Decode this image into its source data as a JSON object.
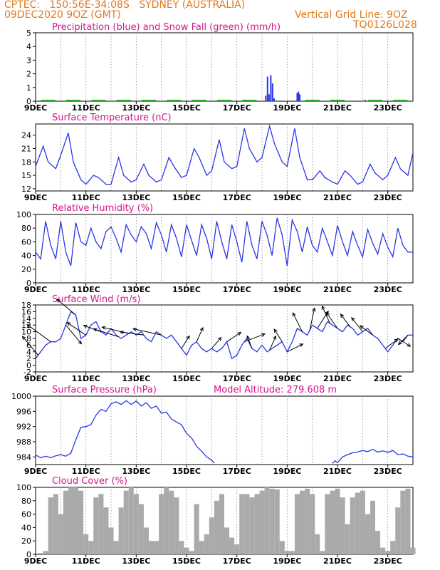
{
  "header": {
    "line1_left": "CPTEC:   150:56E-34:08S   SYDNEY (AUSTRALIA)",
    "line2_left": "09DEC2020 9OZ (GMT)",
    "line2_right": "Vertical Grid Line: 9OZ",
    "line3_right": "TQ0126L028"
  },
  "colors": {
    "header": "#e07a1e",
    "title": "#d4148c",
    "series": "#2a36e6",
    "snow": "#22a522",
    "cloud": "#aaaaaa",
    "grid": "#888888"
  },
  "x_ticks": [
    "9DEC",
    "11DEC",
    "13DEC",
    "15DEC",
    "17DEC",
    "19DEC",
    "21DEC",
    "23DEC"
  ],
  "chart_data": [
    {
      "type": "bar",
      "title": "Precipitation (blue) and Snow Fall (green) (mm/h)",
      "xlabel": "",
      "ylabel": "",
      "ylim": [
        0,
        5
      ],
      "y_ticks": [
        "0",
        "1",
        "2",
        "3",
        "4",
        "5"
      ],
      "series": [
        {
          "x": [
            18.15,
            18.22,
            18.28,
            18.35,
            18.42,
            18.48,
            19.4,
            19.45,
            19.5,
            22.1
          ],
          "values": [
            0.4,
            1.8,
            0.5,
            1.9,
            1.3,
            0.2,
            0.6,
            0.7,
            0.5,
            0.1
          ]
        },
        {
          "x": [
            9.5,
            10.5,
            11.5,
            12.5,
            13.5,
            14.5,
            15.5,
            16.5,
            17.5,
            20.0,
            21.0,
            22.5,
            23.5
          ],
          "values": [
            0.05,
            0.05,
            0.05,
            0.05,
            0.05,
            0.05,
            0.05,
            0.05,
            0.05,
            0.05,
            0.05,
            0.05,
            0.05
          ]
        }
      ]
    },
    {
      "type": "line",
      "title": "Surface Temperature (nC)",
      "ylim": [
        11.5,
        26.5
      ],
      "y_ticks": [
        "12",
        "15",
        "18",
        "21",
        "24"
      ],
      "x": [
        9.0,
        9.3,
        9.5,
        9.8,
        10.0,
        10.3,
        10.5,
        10.8,
        11.0,
        11.3,
        11.5,
        11.8,
        12.0,
        12.3,
        12.5,
        12.8,
        13.0,
        13.3,
        13.5,
        13.8,
        14.0,
        14.3,
        14.5,
        14.8,
        15.0,
        15.3,
        15.5,
        15.8,
        16.0,
        16.3,
        16.5,
        16.8,
        17.0,
        17.3,
        17.5,
        17.8,
        18.0,
        18.3,
        18.5,
        18.8,
        19.0,
        19.3,
        19.5,
        19.8,
        20.0,
        20.3,
        20.5,
        20.8,
        21.0,
        21.3,
        21.5,
        21.8,
        22.0,
        22.3,
        22.5,
        22.8,
        23.0,
        23.3,
        23.5,
        23.8,
        24.0
      ],
      "values": [
        17,
        21.5,
        18,
        16.5,
        19.5,
        24.5,
        18,
        14,
        13,
        15,
        14.5,
        13,
        13,
        19,
        15,
        13.5,
        14,
        17.5,
        15,
        13.5,
        14,
        19,
        17,
        14.5,
        15,
        21,
        19,
        15,
        16,
        23,
        18,
        16.5,
        17,
        25.5,
        21,
        18,
        19,
        26,
        22,
        18,
        17,
        25.5,
        19,
        14,
        14,
        16,
        14.5,
        13.5,
        13,
        16,
        15,
        13,
        13.5,
        17.5,
        15.5,
        14,
        15,
        19,
        16.5,
        15,
        20
      ]
    },
    {
      "type": "line",
      "title": "Relative Humidity (%)",
      "ylim": [
        0,
        100
      ],
      "y_ticks": [
        "0",
        "20",
        "40",
        "60",
        "80",
        "100"
      ],
      "x": [
        9.0,
        9.2,
        9.4,
        9.6,
        9.8,
        10.0,
        10.2,
        10.4,
        10.6,
        10.8,
        11.0,
        11.2,
        11.4,
        11.6,
        11.8,
        12.0,
        12.2,
        12.4,
        12.6,
        12.8,
        13.0,
        13.2,
        13.4,
        13.6,
        13.8,
        14.0,
        14.2,
        14.4,
        14.6,
        14.8,
        15.0,
        15.2,
        15.4,
        15.6,
        15.8,
        16.0,
        16.2,
        16.4,
        16.6,
        16.8,
        17.0,
        17.2,
        17.4,
        17.6,
        17.8,
        18.0,
        18.2,
        18.4,
        18.6,
        18.8,
        19.0,
        19.2,
        19.4,
        19.6,
        19.8,
        20.0,
        20.2,
        20.4,
        20.6,
        20.8,
        21.0,
        21.2,
        21.4,
        21.6,
        21.8,
        22.0,
        22.2,
        22.4,
        22.6,
        22.8,
        23.0,
        23.2,
        23.4,
        23.6,
        23.8,
        24.0
      ],
      "values": [
        45,
        35,
        90,
        55,
        35,
        90,
        45,
        25,
        88,
        60,
        55,
        80,
        60,
        50,
        75,
        82,
        65,
        45,
        85,
        70,
        60,
        82,
        72,
        50,
        88,
        70,
        45,
        85,
        65,
        38,
        85,
        62,
        40,
        85,
        65,
        35,
        90,
        60,
        35,
        85,
        60,
        30,
        90,
        55,
        35,
        90,
        70,
        40,
        95,
        70,
        25,
        92,
        75,
        45,
        82,
        55,
        45,
        80,
        60,
        40,
        84,
        60,
        40,
        75,
        55,
        38,
        78,
        58,
        42,
        72,
        52,
        38,
        80,
        55,
        45,
        45
      ]
    },
    {
      "type": "line",
      "title": "Surface Wind (m/s)",
      "ylim": [
        -2,
        18
      ],
      "y_ticks": [
        "-2",
        "0",
        "2",
        "4",
        "6",
        "8",
        "10",
        "12",
        "14",
        "16",
        "18"
      ],
      "x": [
        9.0,
        9.2,
        9.4,
        9.6,
        9.8,
        10.0,
        10.2,
        10.4,
        10.6,
        10.8,
        11.0,
        11.2,
        11.4,
        11.6,
        11.8,
        12.0,
        12.2,
        12.4,
        12.6,
        12.8,
        13.0,
        13.2,
        13.4,
        13.6,
        13.8,
        14.0,
        14.2,
        14.4,
        14.6,
        14.8,
        15.0,
        15.2,
        15.4,
        15.6,
        15.8,
        16.0,
        16.2,
        16.4,
        16.6,
        16.8,
        17.0,
        17.2,
        17.4,
        17.6,
        17.8,
        18.0,
        18.2,
        18.4,
        18.6,
        18.8,
        19.0,
        19.2,
        19.4,
        19.6,
        19.8,
        20.0,
        20.2,
        20.4,
        20.6,
        20.8,
        21.0,
        21.2,
        21.4,
        21.6,
        21.8,
        22.0,
        22.2,
        22.4,
        22.6,
        22.8,
        23.0,
        23.2,
        23.4,
        23.6,
        23.8,
        24.0
      ],
      "values": [
        2,
        4,
        6,
        7,
        7,
        8,
        12,
        16,
        15,
        8,
        9,
        12,
        13,
        10,
        9,
        11,
        9,
        8,
        9,
        10,
        9,
        10,
        8,
        7,
        10,
        9,
        8,
        9,
        7,
        5,
        3,
        6,
        7,
        5,
        4,
        5,
        4,
        5,
        7,
        2,
        3,
        6,
        8,
        5,
        4,
        6,
        4,
        5,
        6,
        7,
        4,
        7,
        11,
        10,
        9,
        12,
        11,
        10,
        13,
        12,
        11,
        10,
        12,
        11,
        9,
        10,
        11,
        9,
        8,
        6,
        4,
        6,
        8,
        7,
        9,
        9
      ],
      "arrows": [
        {
          "x": 9.1,
          "u": -1,
          "v": 1.2
        },
        {
          "x": 9.6,
          "u": -1.5,
          "v": 1.1
        },
        {
          "x": 10.2,
          "u": 1,
          "v": -1.2
        },
        {
          "x": 10.6,
          "u": -1.2,
          "v": 1
        },
        {
          "x": 11.0,
          "u": -1.2,
          "v": 0.8
        },
        {
          "x": 11.6,
          "u": -1.1,
          "v": 0.4
        },
        {
          "x": 12.3,
          "u": -1.6,
          "v": 0.5
        },
        {
          "x": 12.7,
          "u": -1.7,
          "v": 0.4
        },
        {
          "x": 13.3,
          "u": -1.5,
          "v": 0.2
        },
        {
          "x": 14.0,
          "u": -1.8,
          "v": 0.4
        },
        {
          "x": 14.8,
          "u": 0.5,
          "v": 0.8
        },
        {
          "x": 15.4,
          "u": 0.4,
          "v": 0.9
        },
        {
          "x": 16.0,
          "u": 0.6,
          "v": 0.7
        },
        {
          "x": 16.6,
          "u": 0.9,
          "v": 0.6
        },
        {
          "x": 17.3,
          "u": 1.3,
          "v": 0.5
        },
        {
          "x": 17.6,
          "u": -0.3,
          "v": 0.8
        },
        {
          "x": 18.3,
          "u": 0.4,
          "v": 0.9
        },
        {
          "x": 18.8,
          "u": -0.5,
          "v": 0.8
        },
        {
          "x": 19.0,
          "u": 1.0,
          "v": 0.5
        },
        {
          "x": 19.6,
          "u": -0.6,
          "v": 1.2
        },
        {
          "x": 19.9,
          "u": 0.3,
          "v": 1.4
        },
        {
          "x": 20.2,
          "u": 0.7,
          "v": 1.1
        },
        {
          "x": 20.7,
          "u": -0.5,
          "v": 1.1
        },
        {
          "x": 21.0,
          "u": -0.7,
          "v": 1.0
        },
        {
          "x": 21.5,
          "u": -0.6,
          "v": 0.8
        },
        {
          "x": 22.0,
          "u": -0.7,
          "v": 0.9
        },
        {
          "x": 22.4,
          "u": -0.8,
          "v": 0.6
        },
        {
          "x": 22.9,
          "u": 0.8,
          "v": 0.6
        },
        {
          "x": 23.4,
          "u": 0.8,
          "v": -0.5
        },
        {
          "x": 23.8,
          "u": -0.6,
          "v": -0.6
        }
      ]
    },
    {
      "type": "line",
      "title": "Surface Pressure (hPa)",
      "subtitle": "Model Altitude: 279.608  m",
      "ylim": [
        982,
        1000
      ],
      "y_ticks": [
        "984",
        "988",
        "992",
        "996",
        "1000"
      ],
      "x": [
        9.0,
        9.2,
        9.4,
        9.6,
        9.8,
        10.0,
        10.2,
        10.4,
        10.6,
        10.8,
        11.0,
        11.2,
        11.4,
        11.6,
        11.8,
        12.0,
        12.2,
        12.4,
        12.6,
        12.8,
        13.0,
        13.2,
        13.4,
        13.6,
        13.8,
        14.0,
        14.2,
        14.4,
        14.6,
        14.8,
        15.0,
        15.2,
        15.4,
        15.6,
        15.8,
        16.0,
        16.1
      ],
      "x2": [
        20.8,
        20.9,
        21.0,
        21.2,
        21.4,
        21.6,
        21.8,
        22.0,
        22.2,
        22.4,
        22.6,
        22.8,
        23.0,
        23.2,
        23.4,
        23.6,
        23.8,
        24.0
      ],
      "values": [
        984.5,
        983.8,
        984.2,
        983.8,
        984.3,
        984.6,
        984.2,
        985,
        988.5,
        991.8,
        992,
        992.5,
        995,
        996.5,
        996,
        998,
        998.5,
        997.8,
        998.8,
        997.8,
        998.7,
        997.4,
        998.3,
        996.8,
        997.4,
        995.5,
        995.8,
        994,
        993.2,
        992.5,
        990.2,
        989,
        986.8,
        985.5,
        984,
        983.2,
        982.4
      ],
      "values2": [
        982.3,
        983,
        982.5,
        984,
        984.6,
        985.1,
        985.3,
        985.7,
        985.4,
        986,
        985.3,
        985.6,
        985.2,
        985.7,
        984.6,
        984.8,
        984.2,
        984
      ]
    },
    {
      "type": "bar",
      "title": "Cloud Cover (%)",
      "ylim": [
        0,
        100
      ],
      "y_ticks": [
        "0",
        "20",
        "40",
        "60",
        "80",
        "100"
      ],
      "x": [
        9.0,
        9.2,
        9.4,
        9.6,
        9.8,
        10.0,
        10.2,
        10.4,
        10.6,
        10.8,
        11.0,
        11.2,
        11.4,
        11.6,
        11.8,
        12.0,
        12.2,
        12.4,
        12.6,
        12.8,
        13.0,
        13.2,
        13.4,
        13.6,
        13.8,
        14.0,
        14.2,
        14.4,
        14.6,
        14.8,
        15.0,
        15.2,
        15.4,
        15.6,
        15.8,
        16.0,
        16.2,
        16.4,
        16.6,
        16.8,
        17.0,
        17.2,
        17.4,
        17.6,
        17.8,
        18.0,
        18.2,
        18.4,
        18.6,
        18.8,
        19.0,
        19.2,
        19.4,
        19.6,
        19.8,
        20.0,
        20.2,
        20.4,
        20.6,
        20.8,
        21.0,
        21.2,
        21.4,
        21.6,
        21.8,
        22.0,
        22.2,
        22.4,
        22.6,
        22.8,
        23.0,
        23.2,
        23.4,
        23.6,
        23.8,
        24.0
      ],
      "values": [
        0,
        2,
        5,
        85,
        90,
        60,
        95,
        100,
        100,
        95,
        30,
        20,
        85,
        90,
        70,
        40,
        20,
        70,
        95,
        100,
        90,
        75,
        40,
        20,
        20,
        90,
        100,
        95,
        85,
        20,
        10,
        5,
        75,
        20,
        30,
        55,
        80,
        90,
        40,
        25,
        15,
        90,
        90,
        85,
        90,
        95,
        100,
        98,
        97,
        20,
        5,
        5,
        90,
        95,
        98,
        90,
        30,
        5,
        90,
        95,
        98,
        85,
        45,
        85,
        92,
        95,
        60,
        80,
        35,
        10,
        5,
        20,
        70,
        95,
        98,
        10
      ]
    }
  ]
}
